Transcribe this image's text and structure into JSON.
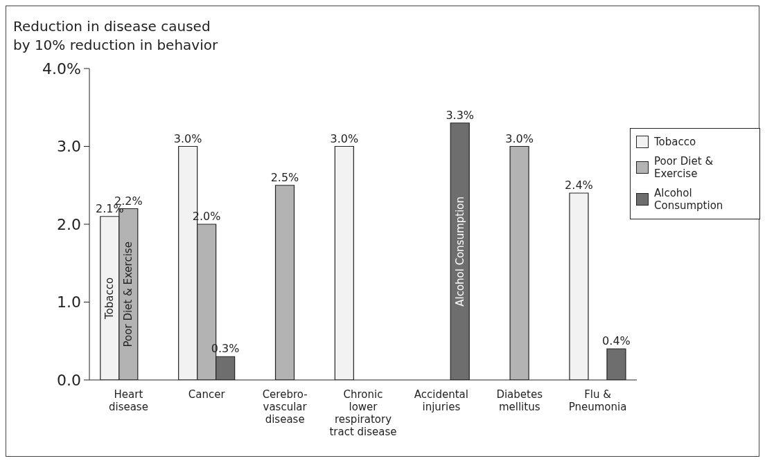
{
  "chart_data": {
    "type": "bar",
    "title": "Reduction in disease caused\nby 10% reduction in behavior",
    "categories": [
      "Heart\ndisease",
      "Cancer",
      "Cerebro-\nvascular\ndisease",
      "Chronic\nlower\nrespiratory\ntract disease",
      "Accidental\ninjuries",
      "Diabetes\nmellitus",
      "Flu &\nPneumonia"
    ],
    "series": [
      {
        "name": "Tobacco",
        "color": "#f2f2f2",
        "values": [
          2.1,
          3.0,
          null,
          3.0,
          null,
          null,
          2.4
        ],
        "value_labels": [
          "2.1%",
          "3.0%",
          null,
          "3.0%",
          null,
          null,
          "2.4%"
        ]
      },
      {
        "name": "Poor Diet & Exercise",
        "color": "#b3b3b3",
        "values": [
          2.2,
          2.0,
          2.5,
          null,
          null,
          3.0,
          null
        ],
        "value_labels": [
          "2.2%",
          "2.0%",
          "2.5%",
          null,
          null,
          "3.0%",
          null
        ]
      },
      {
        "name": "Alcohol Consumption",
        "color": "#6e6e6e",
        "values": [
          null,
          0.3,
          null,
          null,
          3.3,
          null,
          0.4
        ],
        "value_labels": [
          null,
          "0.3%",
          null,
          null,
          "3.3%",
          null,
          "0.4%"
        ]
      }
    ],
    "ylim": [
      0,
      4
    ],
    "yticks": [
      {
        "value": 0,
        "label": "0.0"
      },
      {
        "value": 1,
        "label": "1.0"
      },
      {
        "value": 2,
        "label": "2.0"
      },
      {
        "value": 3,
        "label": "3.0"
      },
      {
        "value": 4,
        "label": "4.0%"
      }
    ],
    "grid": false,
    "legend": "right",
    "annotations": [
      "Tobacco",
      "Poor Diet & Exercise",
      "Alcohol Consumption"
    ]
  }
}
